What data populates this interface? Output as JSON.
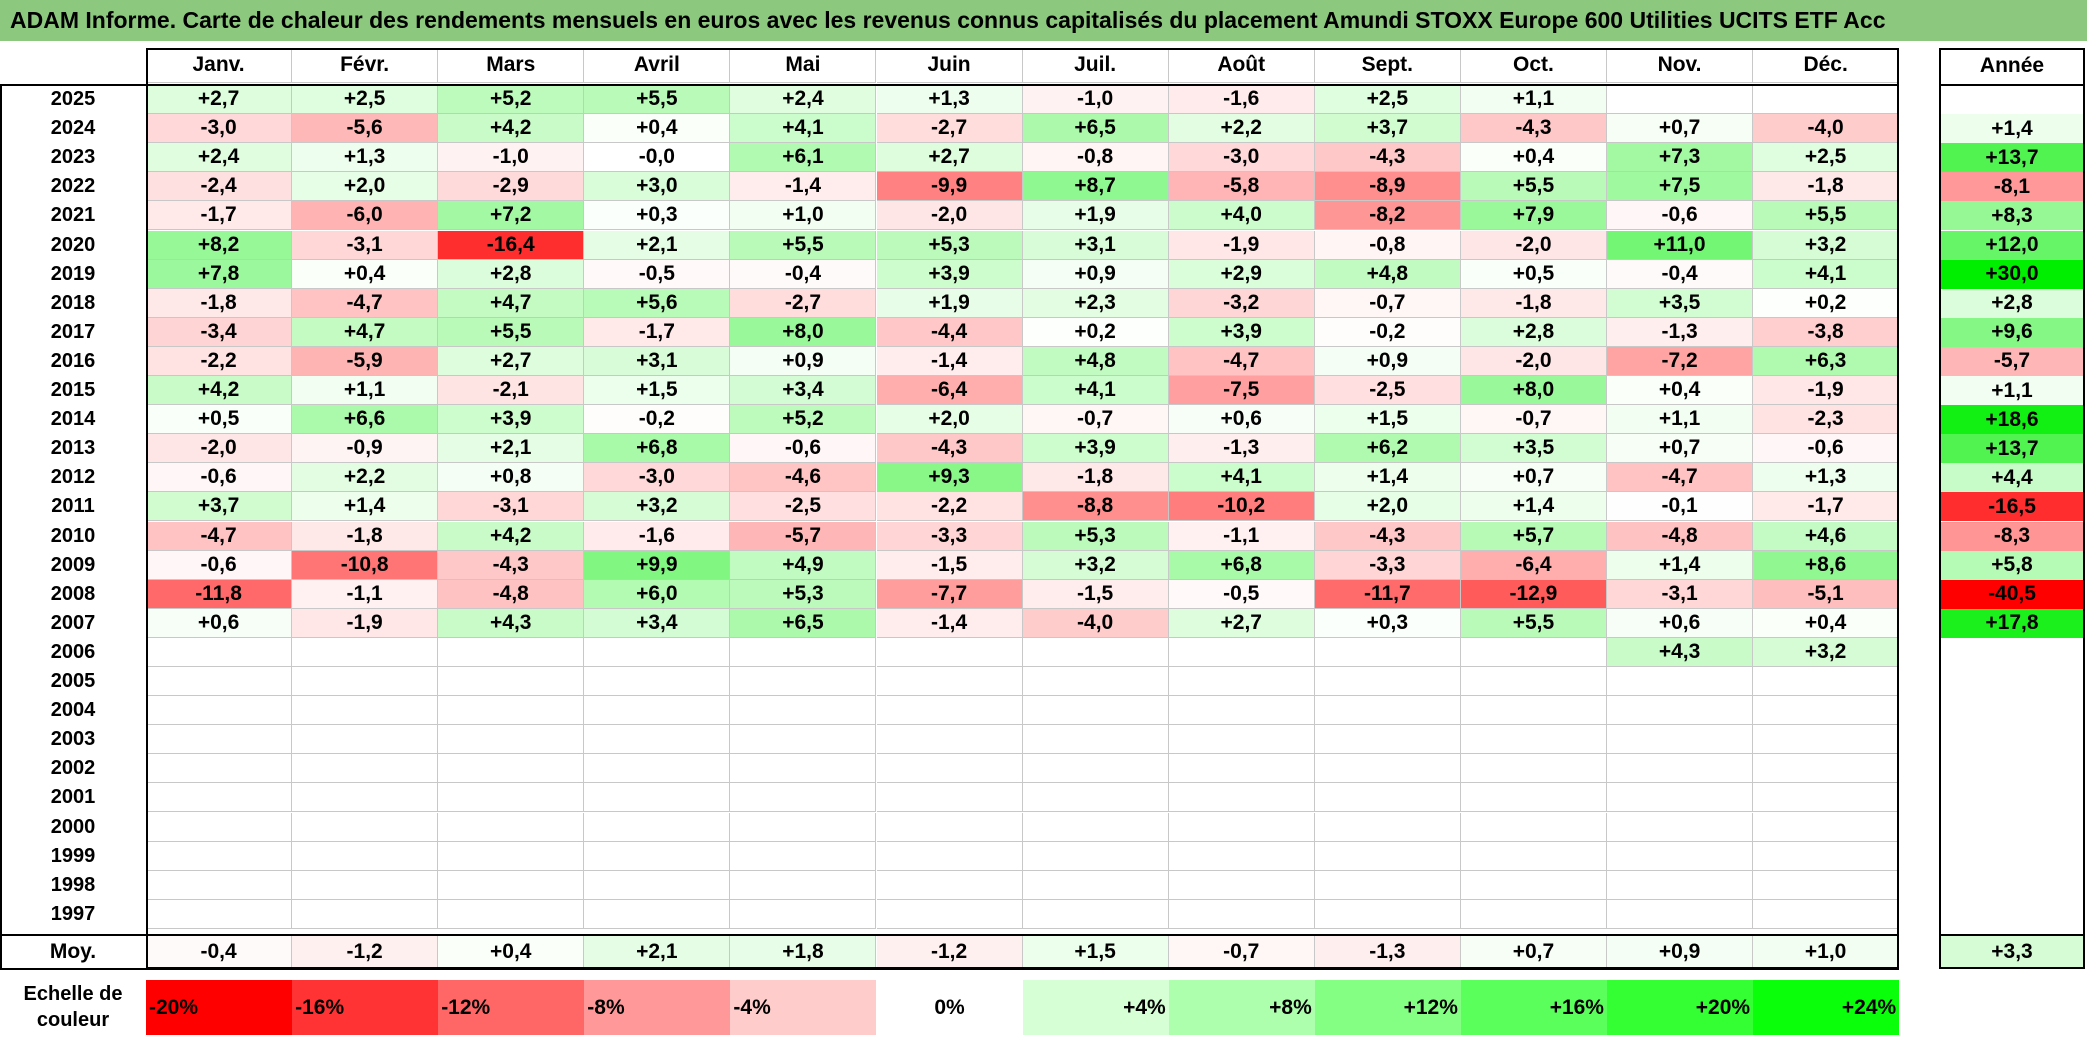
{
  "title": "ADAM Informe. Carte de chaleur des rendements mensuels en euros avec les revenus connus capitalisés du placement Amundi STOXX Europe 600 Utilities UCITS ETF Acc",
  "chart_data": {
    "type": "heatmap",
    "months": [
      "Janv.",
      "Févr.",
      "Mars",
      "Avril",
      "Mai",
      "Juin",
      "Juil.",
      "Août",
      "Sept.",
      "Oct.",
      "Nov.",
      "Déc."
    ],
    "annual_header": "Année",
    "rows": [
      {
        "year": "2025",
        "values": [
          "+2,7",
          "+2,5",
          "+5,2",
          "+5,5",
          "+2,4",
          "+1,3",
          "-1,0",
          "-1,6",
          "+2,5",
          "+1,1",
          "",
          ""
        ],
        "annual": ""
      },
      {
        "year": "2024",
        "values": [
          "-3,0",
          "-5,6",
          "+4,2",
          "+0,4",
          "+4,1",
          "-2,7",
          "+6,5",
          "+2,2",
          "+3,7",
          "-4,3",
          "+0,7",
          "-4,0"
        ],
        "annual": "+1,4"
      },
      {
        "year": "2023",
        "values": [
          "+2,4",
          "+1,3",
          "-1,0",
          "-0,0",
          "+6,1",
          "+2,7",
          "-0,8",
          "-3,0",
          "-4,3",
          "+0,4",
          "+7,3",
          "+2,5"
        ],
        "annual": "+13,7"
      },
      {
        "year": "2022",
        "values": [
          "-2,4",
          "+2,0",
          "-2,9",
          "+3,0",
          "-1,4",
          "-9,9",
          "+8,7",
          "-5,8",
          "-8,9",
          "+5,5",
          "+7,5",
          "-1,8"
        ],
        "annual": "-8,1"
      },
      {
        "year": "2021",
        "values": [
          "-1,7",
          "-6,0",
          "+7,2",
          "+0,3",
          "+1,0",
          "-2,0",
          "+1,9",
          "+4,0",
          "-8,2",
          "+7,9",
          "-0,6",
          "+5,5"
        ],
        "annual": "+8,3"
      },
      {
        "year": "2020",
        "values": [
          "+8,2",
          "-3,1",
          "-16,4",
          "+2,1",
          "+5,5",
          "+5,3",
          "+3,1",
          "-1,9",
          "-0,8",
          "-2,0",
          "+11,0",
          "+3,2"
        ],
        "annual": "+12,0"
      },
      {
        "year": "2019",
        "values": [
          "+7,8",
          "+0,4",
          "+2,8",
          "-0,5",
          "-0,4",
          "+3,9",
          "+0,9",
          "+2,9",
          "+4,8",
          "+0,5",
          "-0,4",
          "+4,1"
        ],
        "annual": "+30,0"
      },
      {
        "year": "2018",
        "values": [
          "-1,8",
          "-4,7",
          "+4,7",
          "+5,6",
          "-2,7",
          "+1,9",
          "+2,3",
          "-3,2",
          "-0,7",
          "-1,8",
          "+3,5",
          "+0,2"
        ],
        "annual": "+2,8"
      },
      {
        "year": "2017",
        "values": [
          "-3,4",
          "+4,7",
          "+5,5",
          "-1,7",
          "+8,0",
          "-4,4",
          "+0,2",
          "+3,9",
          "-0,2",
          "+2,8",
          "-1,3",
          "-3,8"
        ],
        "annual": "+9,6"
      },
      {
        "year": "2016",
        "values": [
          "-2,2",
          "-5,9",
          "+2,7",
          "+3,1",
          "+0,9",
          "-1,4",
          "+4,8",
          "-4,7",
          "+0,9",
          "-2,0",
          "-7,2",
          "+6,3"
        ],
        "annual": "-5,7"
      },
      {
        "year": "2015",
        "values": [
          "+4,2",
          "+1,1",
          "-2,1",
          "+1,5",
          "+3,4",
          "-6,4",
          "+4,1",
          "-7,5",
          "-2,5",
          "+8,0",
          "+0,4",
          "-1,9"
        ],
        "annual": "+1,1"
      },
      {
        "year": "2014",
        "values": [
          "+0,5",
          "+6,6",
          "+3,9",
          "-0,2",
          "+5,2",
          "+2,0",
          "-0,7",
          "+0,6",
          "+1,5",
          "-0,7",
          "+1,1",
          "-2,3"
        ],
        "annual": "+18,6"
      },
      {
        "year": "2013",
        "values": [
          "-2,0",
          "-0,9",
          "+2,1",
          "+6,8",
          "-0,6",
          "-4,3",
          "+3,9",
          "-1,3",
          "+6,2",
          "+3,5",
          "+0,7",
          "-0,6"
        ],
        "annual": "+13,7"
      },
      {
        "year": "2012",
        "values": [
          "-0,6",
          "+2,2",
          "+0,8",
          "-3,0",
          "-4,6",
          "+9,3",
          "-1,8",
          "+4,1",
          "+1,4",
          "+0,7",
          "-4,7",
          "+1,3"
        ],
        "annual": "+4,4"
      },
      {
        "year": "2011",
        "values": [
          "+3,7",
          "+1,4",
          "-3,1",
          "+3,2",
          "-2,5",
          "-2,2",
          "-8,8",
          "-10,2",
          "+2,0",
          "+1,4",
          "-0,1",
          "-1,7"
        ],
        "annual": "-16,5"
      },
      {
        "year": "2010",
        "values": [
          "-4,7",
          "-1,8",
          "+4,2",
          "-1,6",
          "-5,7",
          "-3,3",
          "+5,3",
          "-1,1",
          "-4,3",
          "+5,7",
          "-4,8",
          "+4,6"
        ],
        "annual": "-8,3"
      },
      {
        "year": "2009",
        "values": [
          "-0,6",
          "-10,8",
          "-4,3",
          "+9,9",
          "+4,9",
          "-1,5",
          "+3,2",
          "+6,8",
          "-3,3",
          "-6,4",
          "+1,4",
          "+8,6"
        ],
        "annual": "+5,8"
      },
      {
        "year": "2008",
        "values": [
          "-11,8",
          "-1,1",
          "-4,8",
          "+6,0",
          "+5,3",
          "-7,7",
          "-1,5",
          "-0,5",
          "-11,7",
          "-12,9",
          "-3,1",
          "-5,1"
        ],
        "annual": "-40,5"
      },
      {
        "year": "2007",
        "values": [
          "+0,6",
          "-1,9",
          "+4,3",
          "+3,4",
          "+6,5",
          "-1,4",
          "-4,0",
          "+2,7",
          "+0,3",
          "+5,5",
          "+0,6",
          "+0,4"
        ],
        "annual": "+17,8"
      },
      {
        "year": "2006",
        "values": [
          "",
          "",
          "",
          "",
          "",
          "",
          "",
          "",
          "",
          "",
          "+4,3",
          "+3,2"
        ],
        "annual": ""
      },
      {
        "year": "2005",
        "values": [
          "",
          "",
          "",
          "",
          "",
          "",
          "",
          "",
          "",
          "",
          "",
          ""
        ],
        "annual": ""
      },
      {
        "year": "2004",
        "values": [
          "",
          "",
          "",
          "",
          "",
          "",
          "",
          "",
          "",
          "",
          "",
          ""
        ],
        "annual": ""
      },
      {
        "year": "2003",
        "values": [
          "",
          "",
          "",
          "",
          "",
          "",
          "",
          "",
          "",
          "",
          "",
          ""
        ],
        "annual": ""
      },
      {
        "year": "2002",
        "values": [
          "",
          "",
          "",
          "",
          "",
          "",
          "",
          "",
          "",
          "",
          "",
          ""
        ],
        "annual": ""
      },
      {
        "year": "2001",
        "values": [
          "",
          "",
          "",
          "",
          "",
          "",
          "",
          "",
          "",
          "",
          "",
          ""
        ],
        "annual": ""
      },
      {
        "year": "2000",
        "values": [
          "",
          "",
          "",
          "",
          "",
          "",
          "",
          "",
          "",
          "",
          "",
          ""
        ],
        "annual": ""
      },
      {
        "year": "1999",
        "values": [
          "",
          "",
          "",
          "",
          "",
          "",
          "",
          "",
          "",
          "",
          "",
          ""
        ],
        "annual": ""
      },
      {
        "year": "1998",
        "values": [
          "",
          "",
          "",
          "",
          "",
          "",
          "",
          "",
          "",
          "",
          "",
          ""
        ],
        "annual": ""
      },
      {
        "year": "1997",
        "values": [
          "",
          "",
          "",
          "",
          "",
          "",
          "",
          "",
          "",
          "",
          "",
          ""
        ],
        "annual": ""
      }
    ],
    "average": {
      "label": "Moy.",
      "values": [
        "-0,4",
        "-1,2",
        "+0,4",
        "+2,1",
        "+1,8",
        "-1,2",
        "+1,5",
        "-0,7",
        "-1,3",
        "+0,7",
        "+0,9",
        "+1,0"
      ],
      "annual": "+3,3"
    },
    "scale": {
      "label_line1": "Echelle de",
      "label_line2": "couleur",
      "steps": [
        {
          "label": "-20%",
          "value": -20,
          "color": "#ff0000"
        },
        {
          "label": "-16%",
          "value": -16,
          "color": "#ff3333"
        },
        {
          "label": "-12%",
          "value": -12,
          "color": "#ff6666"
        },
        {
          "label": "-8%",
          "value": -8,
          "color": "#ff9999"
        },
        {
          "label": "-4%",
          "value": -4,
          "color": "#ffcccc"
        },
        {
          "label": "0%",
          "value": 0,
          "color": "#ffffff"
        },
        {
          "label": "+4%",
          "value": 4,
          "color": "#d6ffd6"
        },
        {
          "label": "+8%",
          "value": 8,
          "color": "#adffad"
        },
        {
          "label": "+12%",
          "value": 12,
          "color": "#84ff84"
        },
        {
          "label": "+16%",
          "value": 16,
          "color": "#5bff5b"
        },
        {
          "label": "+20%",
          "value": 20,
          "color": "#33ff33"
        },
        {
          "label": "+24%",
          "value": 24,
          "color": "#0aff0a"
        }
      ]
    },
    "colors": {
      "title_bg": "#8cc97e",
      "negative_max": "#ff0000",
      "positive_max": "#00ee00",
      "neutral": "#ffffff"
    }
  }
}
